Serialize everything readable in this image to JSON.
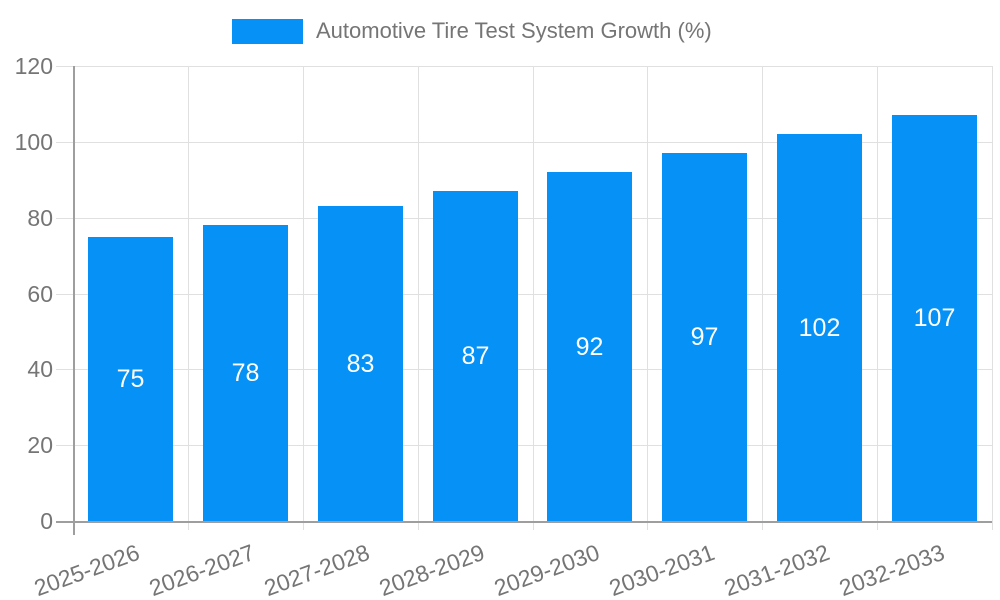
{
  "chart_data": {
    "type": "bar",
    "title": "Automotive Tire Test System Growth (%)",
    "categories": [
      "2025-2026",
      "2026-2027",
      "2027-2028",
      "2028-2029",
      "2029-2030",
      "2030-2031",
      "2031-2032",
      "2032-2033"
    ],
    "values": [
      75,
      78,
      83,
      87,
      92,
      97,
      102,
      107
    ],
    "xlabel": "",
    "ylabel": "",
    "ylim": [
      0,
      120
    ],
    "yticks": [
      0,
      20,
      40,
      60,
      80,
      100,
      120
    ],
    "grid": true,
    "legend_position": "top-center",
    "bar_labels_visible": true,
    "x_tick_rotation_deg": -20
  },
  "legend": {
    "label": "Automotive Tire Test System Growth (%)"
  },
  "colors": {
    "bar": "#0591F5",
    "text": "#757575",
    "grid": "#E0E0E0",
    "axis": "#9E9E9E",
    "value_label": "#FFFFFF",
    "background": "#FFFFFF"
  }
}
